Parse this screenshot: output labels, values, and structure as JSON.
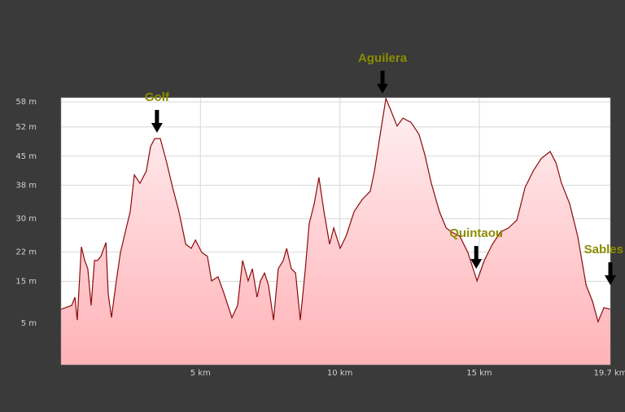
{
  "chart_data": {
    "type": "area",
    "x": [
      0,
      0.38,
      0.5,
      0.58,
      0.73,
      0.85,
      0.96,
      1.08,
      1.2,
      1.31,
      1.43,
      1.61,
      1.69,
      1.81,
      1.96,
      2.13,
      2.34,
      2.48,
      2.63,
      2.83,
      3.06,
      3.21,
      3.36,
      3.56,
      3.79,
      4.0,
      4.23,
      4.47,
      4.67,
      4.82,
      5.05,
      5.25,
      5.4,
      5.63,
      5.84,
      6.13,
      6.33,
      6.51,
      6.71,
      6.86,
      7.03,
      7.15,
      7.3,
      7.44,
      7.62,
      7.79,
      7.97,
      8.09,
      8.26,
      8.41,
      8.58,
      8.76,
      8.9,
      9.08,
      9.25,
      9.43,
      9.63,
      9.78,
      10.01,
      10.22,
      10.51,
      10.8,
      11.09,
      11.24,
      11.47,
      11.65,
      11.82,
      12.05,
      12.26,
      12.55,
      12.84,
      13.05,
      13.28,
      13.57,
      13.81,
      14.01,
      14.3,
      14.59,
      14.92,
      15.18,
      15.47,
      15.76,
      16.05,
      16.35,
      16.64,
      16.93,
      17.22,
      17.54,
      17.75,
      17.95,
      18.24,
      18.53,
      18.83,
      19.06,
      19.26,
      19.47,
      19.7
    ],
    "series": [
      {
        "color": "#8b0a0a",
        "fill": "#ffc4c8",
        "values": [
          8.3,
          9.2,
          11.2,
          5.7,
          23.3,
          20.0,
          18.0,
          9.2,
          20.0,
          20.0,
          21.0,
          24.3,
          12.2,
          6.3,
          14.1,
          21.9,
          27.8,
          31.7,
          40.5,
          38.5,
          41.4,
          47.3,
          49.2,
          49.2,
          43.4,
          37.5,
          31.7,
          23.9,
          22.9,
          24.9,
          21.9,
          21.0,
          15.1,
          16.1,
          12.2,
          6.3,
          9.2,
          20.0,
          15.1,
          18.0,
          11.2,
          15.1,
          17.0,
          14.1,
          5.7,
          18.0,
          20.0,
          22.9,
          18.0,
          17.0,
          5.7,
          18.0,
          28.8,
          33.6,
          39.9,
          31.7,
          23.9,
          27.8,
          22.9,
          25.8,
          31.7,
          34.6,
          36.6,
          41.4,
          51.2,
          58.8,
          56.1,
          52.2,
          54.1,
          53.1,
          50.2,
          45.3,
          38.5,
          31.7,
          27.8,
          26.8,
          25.8,
          21.9,
          15.1,
          20.0,
          23.9,
          26.8,
          27.8,
          29.7,
          37.5,
          41.4,
          44.4,
          46.1,
          43.4,
          38.5,
          33.6,
          25.8,
          14.1,
          10.2,
          5.3,
          8.7,
          8.3
        ]
      }
    ],
    "xlim": [
      0,
      19.7
    ],
    "xticks": [
      {
        "value": 5,
        "label": "5 km"
      },
      {
        "value": 10,
        "label": "10 km"
      },
      {
        "value": 15,
        "label": "15 km"
      },
      {
        "value": 19.7,
        "label": "19.7 km"
      }
    ],
    "ylim": [
      -5,
      59
    ],
    "yticks": [
      {
        "value": 58,
        "label": "58 m"
      },
      {
        "value": 52,
        "label": "52 m"
      },
      {
        "value": 45,
        "label": "45 m"
      },
      {
        "value": 38,
        "label": "38 m"
      },
      {
        "value": 30,
        "label": "30 m"
      },
      {
        "value": 22,
        "label": "22 m"
      },
      {
        "value": 15,
        "label": "15 m"
      },
      {
        "value": 5,
        "label": "5 m"
      }
    ],
    "grid": true,
    "annotations": [
      {
        "text": "Golf",
        "x": 3.44,
        "y": 50.6
      },
      {
        "text": "Aguilera",
        "x": 11.53,
        "y": 60.0
      },
      {
        "text": "Quintaou",
        "x": 14.89,
        "y": 18.0
      },
      {
        "text": "Sables",
        "x": 19.7,
        "y": 14.1
      }
    ]
  }
}
